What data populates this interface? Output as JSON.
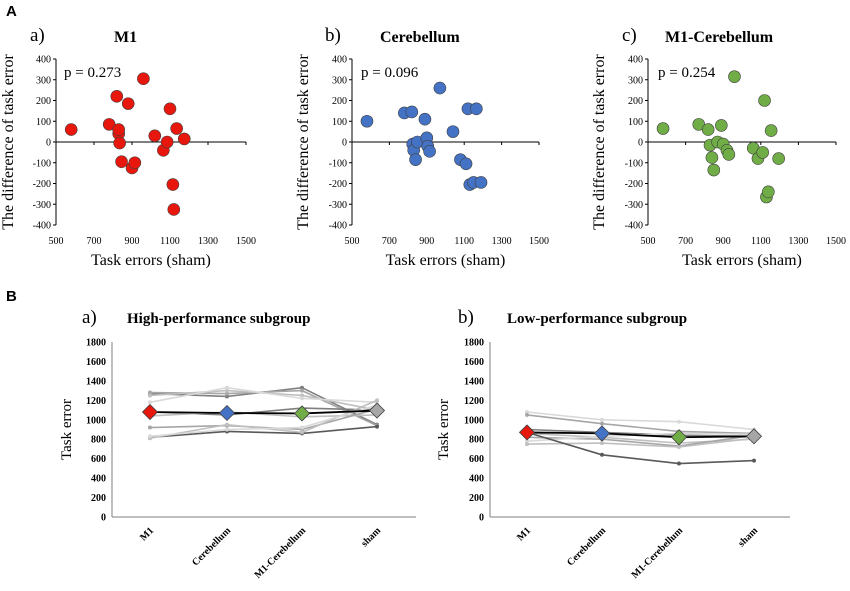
{
  "section_a_label": "A",
  "section_b_label": "B",
  "chart_data": [
    {
      "id": "scatter-m1",
      "type": "scatter",
      "panel_letter": "a)",
      "title": "M1",
      "p_label": "p = 0.273",
      "xlabel": "Task errors (sham)",
      "ylabel": "The difference of task error",
      "xlim": [
        500,
        1500
      ],
      "ylim": [
        -400,
        400
      ],
      "xticks": [
        500,
        700,
        900,
        1100,
        1300,
        1500
      ],
      "yticks": [
        400,
        300,
        200,
        100,
        0,
        -100,
        -200,
        -300,
        -400
      ],
      "color": "#e8170d",
      "points": [
        [
          580,
          60
        ],
        [
          780,
          85
        ],
        [
          820,
          220
        ],
        [
          830,
          40
        ],
        [
          830,
          60
        ],
        [
          835,
          -5
        ],
        [
          845,
          -95
        ],
        [
          880,
          185
        ],
        [
          900,
          -125
        ],
        [
          915,
          -100
        ],
        [
          960,
          305
        ],
        [
          1020,
          30
        ],
        [
          1065,
          -40
        ],
        [
          1085,
          0
        ],
        [
          1100,
          160
        ],
        [
          1115,
          -205
        ],
        [
          1120,
          -325
        ],
        [
          1135,
          65
        ],
        [
          1175,
          15
        ]
      ]
    },
    {
      "id": "scatter-cerebellum",
      "type": "scatter",
      "panel_letter": "b)",
      "title": "Cerebellum",
      "p_label": "p = 0.096",
      "xlabel": "Task errors (sham)",
      "ylabel": "The difference of task error",
      "xlim": [
        500,
        1500
      ],
      "ylim": [
        -400,
        400
      ],
      "xticks": [
        500,
        700,
        900,
        1100,
        1300,
        1500
      ],
      "yticks": [
        400,
        300,
        200,
        100,
        0,
        -100,
        -200,
        -300,
        -400
      ],
      "color": "#4472c4",
      "points": [
        [
          580,
          100
        ],
        [
          780,
          140
        ],
        [
          820,
          145
        ],
        [
          825,
          -10
        ],
        [
          830,
          -40
        ],
        [
          840,
          -85
        ],
        [
          850,
          0
        ],
        [
          890,
          110
        ],
        [
          900,
          20
        ],
        [
          905,
          -20
        ],
        [
          915,
          -45
        ],
        [
          970,
          260
        ],
        [
          1040,
          50
        ],
        [
          1080,
          -85
        ],
        [
          1110,
          -105
        ],
        [
          1120,
          160
        ],
        [
          1130,
          -205
        ],
        [
          1150,
          -195
        ],
        [
          1165,
          160
        ],
        [
          1190,
          -195
        ]
      ]
    },
    {
      "id": "scatter-m1-cerebellum",
      "type": "scatter",
      "panel_letter": "c)",
      "title": "M1-Cerebellum",
      "p_label": "p = 0.254",
      "xlabel": "Task errors (sham)",
      "ylabel": "The difference of task error",
      "xlim": [
        500,
        1500
      ],
      "ylim": [
        -400,
        400
      ],
      "xticks": [
        500,
        700,
        900,
        1100,
        1300,
        1500
      ],
      "yticks": [
        400,
        300,
        200,
        100,
        0,
        -100,
        -200,
        -300,
        -400
      ],
      "color": "#70ad47",
      "points": [
        [
          580,
          65
        ],
        [
          770,
          85
        ],
        [
          820,
          60
        ],
        [
          830,
          -15
        ],
        [
          840,
          -75
        ],
        [
          850,
          -135
        ],
        [
          870,
          0
        ],
        [
          890,
          80
        ],
        [
          900,
          -10
        ],
        [
          920,
          -40
        ],
        [
          930,
          -60
        ],
        [
          960,
          315
        ],
        [
          1060,
          -30
        ],
        [
          1085,
          -80
        ],
        [
          1110,
          -50
        ],
        [
          1120,
          200
        ],
        [
          1130,
          -265
        ],
        [
          1140,
          -240
        ],
        [
          1155,
          55
        ],
        [
          1195,
          -80
        ]
      ]
    },
    {
      "id": "line-high",
      "type": "line",
      "panel_letter": "a)",
      "title": "High-performance subgroup",
      "ylabel": "Task error",
      "ylim": [
        0,
        1800
      ],
      "yticks": [
        1800,
        1600,
        1400,
        1200,
        1000,
        800,
        600,
        400,
        200,
        0
      ],
      "categories": [
        "M1",
        "Cerebellum",
        "M1-Cerebellum",
        "sham"
      ],
      "individual_series": [
        {
          "values": [
            1270,
            1240,
            1330,
            950
          ],
          "color": "#7f7f7f"
        },
        {
          "values": [
            1280,
            1270,
            1300,
            940
          ],
          "color": "#a6a6a6"
        },
        {
          "values": [
            1250,
            1300,
            1250,
            1100
          ],
          "color": "#bfbfbf"
        },
        {
          "values": [
            1180,
            1330,
            1220,
            1180
          ],
          "color": "#d9d9d9"
        },
        {
          "values": [
            1080,
            1050,
            1120,
            1100
          ],
          "color": "#7f7f7f"
        },
        {
          "values": [
            1040,
            1080,
            1030,
            1050
          ],
          "color": "#bfbfbf"
        },
        {
          "values": [
            920,
            940,
            900,
            1110
          ],
          "color": "#a6a6a6"
        },
        {
          "values": [
            820,
            880,
            860,
            930
          ],
          "color": "#595959"
        },
        {
          "values": [
            810,
            950,
            870,
            1200
          ],
          "color": "#bfbfbf"
        },
        {
          "values": [
            830,
            900,
            920,
            1150
          ],
          "color": "#d9d9d9"
        }
      ],
      "mean_series": {
        "name": "mean",
        "values": [
          1080,
          1070,
          1065,
          1095
        ],
        "color": "#000000"
      },
      "marker_colors": [
        "#e8170d",
        "#4472c4",
        "#70ad47",
        "#a6a6a6"
      ]
    },
    {
      "id": "line-low",
      "type": "line",
      "panel_letter": "b)",
      "title": "Low-performance subgroup",
      "ylabel": "Task error",
      "ylim": [
        0,
        1800
      ],
      "yticks": [
        1800,
        1600,
        1400,
        1200,
        1000,
        800,
        600,
        400,
        200,
        0
      ],
      "categories": [
        "M1",
        "Cerebellum",
        "M1-Cerebellum",
        "sham"
      ],
      "individual_series": [
        {
          "values": [
            1080,
            1000,
            980,
            900
          ],
          "color": "#d9d9d9"
        },
        {
          "values": [
            1050,
            960,
            880,
            860
          ],
          "color": "#a6a6a6"
        },
        {
          "values": [
            900,
            870,
            840,
            830
          ],
          "color": "#7f7f7f"
        },
        {
          "values": [
            860,
            820,
            760,
            800
          ],
          "color": "#bfbfbf"
        },
        {
          "values": [
            820,
            800,
            730,
            840
          ],
          "color": "#a6a6a6"
        },
        {
          "values": [
            780,
            830,
            860,
            850
          ],
          "color": "#d9d9d9"
        },
        {
          "values": [
            750,
            760,
            720,
            810
          ],
          "color": "#bfbfbf"
        },
        {
          "values": [
            870,
            640,
            550,
            580
          ],
          "color": "#595959"
        }
      ],
      "mean_series": {
        "name": "mean",
        "values": [
          870,
          860,
          820,
          830
        ],
        "color": "#000000"
      },
      "marker_colors": [
        "#e8170d",
        "#4472c4",
        "#70ad47",
        "#a6a6a6"
      ]
    }
  ]
}
